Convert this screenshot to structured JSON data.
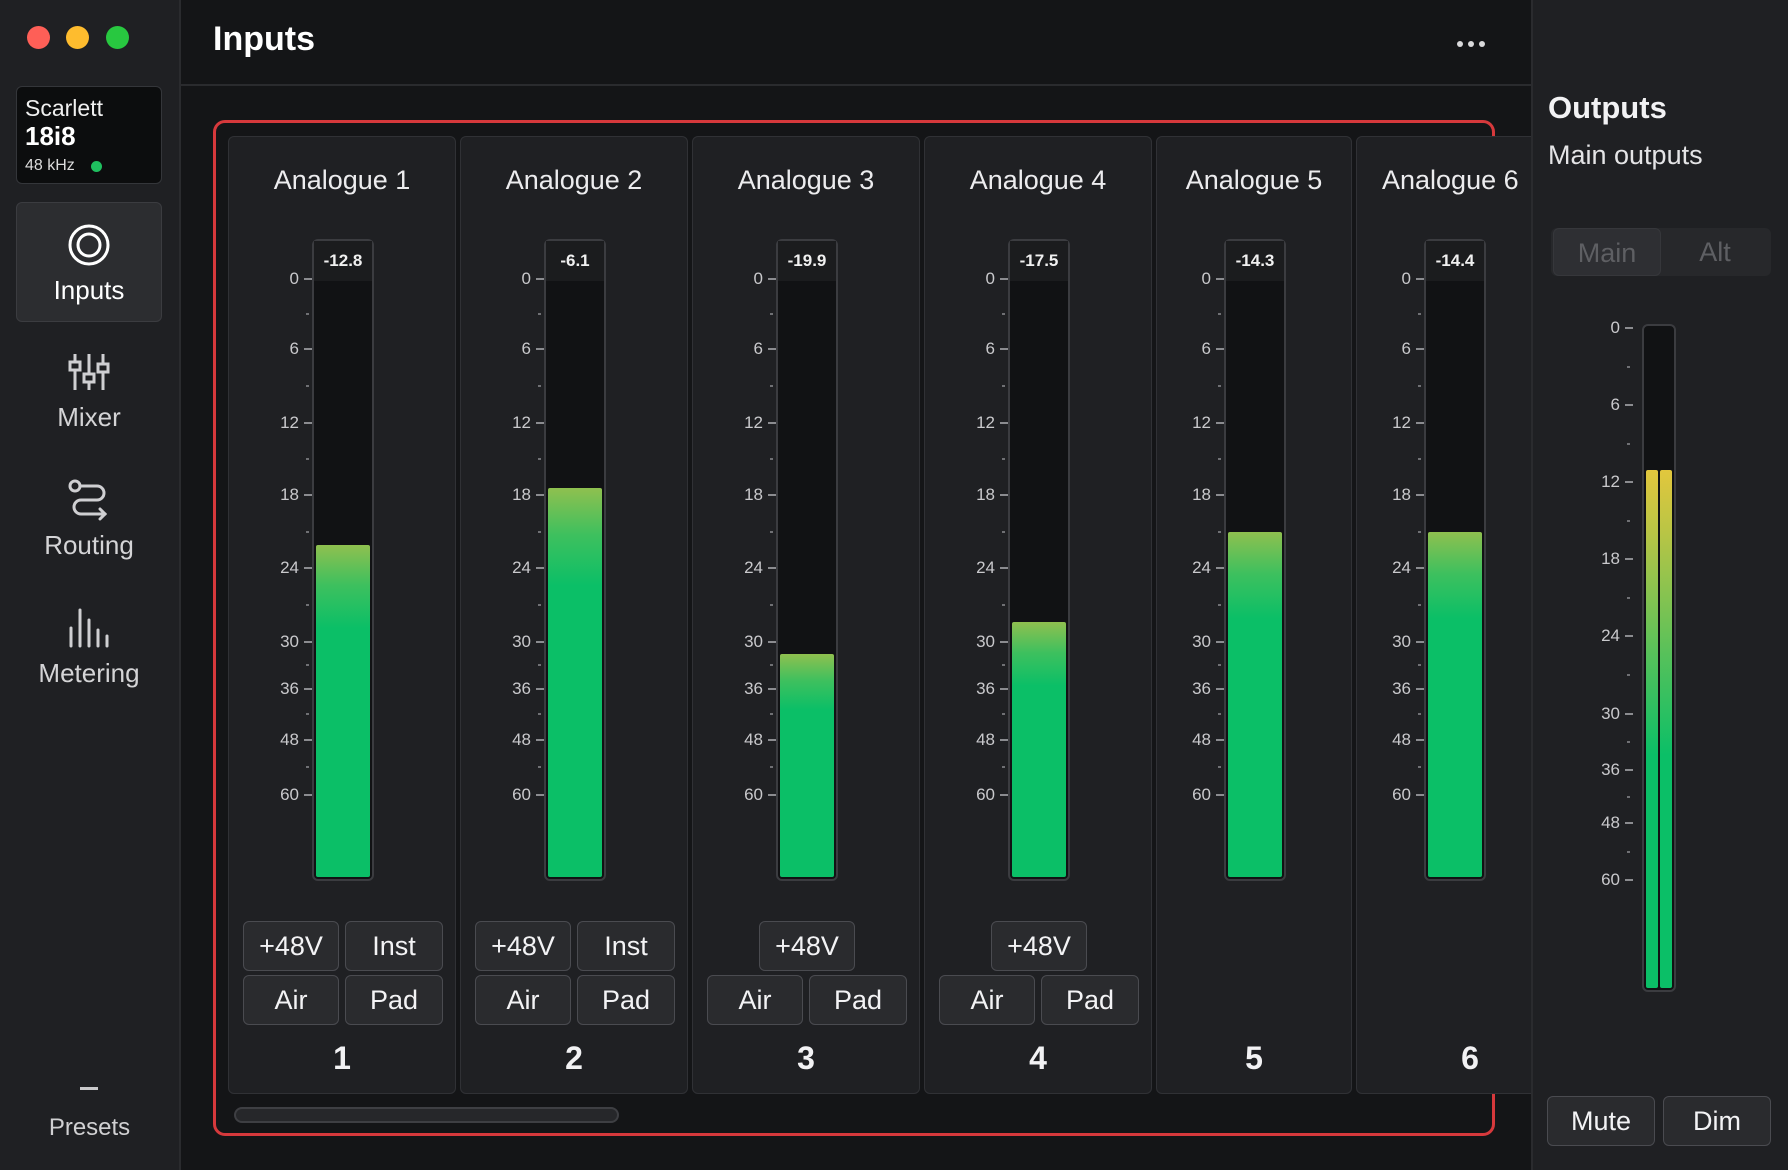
{
  "window": {
    "traffic_lights": {
      "close": "#fe5f57",
      "minimize": "#febc2e",
      "zoom": "#28c840"
    }
  },
  "device": {
    "name": "Scarlett",
    "model": "18i8",
    "sample_rate": "48 kHz",
    "status_color": "#1fbf5f"
  },
  "sidebar": {
    "items": [
      {
        "label": "Inputs",
        "icon": "inputs-icon",
        "active": true
      },
      {
        "label": "Mixer",
        "icon": "mixer-icon",
        "active": false
      },
      {
        "label": "Routing",
        "icon": "routing-icon",
        "active": false
      },
      {
        "label": "Metering",
        "icon": "metering-icon",
        "active": false
      }
    ],
    "presets_label": "Presets"
  },
  "header": {
    "title": "Inputs",
    "more_icon": "more-horizontal-icon"
  },
  "meter_scale": [
    "0",
    "6",
    "12",
    "18",
    "24",
    "30",
    "36",
    "48",
    "60"
  ],
  "inputs": [
    {
      "title": "Analogue 1",
      "peak": "-12.8",
      "level": 0.52,
      "buttons": [
        "+48V",
        "Inst",
        "Air",
        "Pad"
      ],
      "number": "1"
    },
    {
      "title": "Analogue 2",
      "peak": "-6.1",
      "level": 0.61,
      "buttons": [
        "+48V",
        "Inst",
        "Air",
        "Pad"
      ],
      "number": "2"
    },
    {
      "title": "Analogue 3",
      "peak": "-19.9",
      "level": 0.35,
      "buttons": [
        "+48V",
        "Air",
        "Pad"
      ],
      "number": "3"
    },
    {
      "title": "Analogue 4",
      "peak": "-17.5",
      "level": 0.4,
      "buttons": [
        "+48V",
        "Air",
        "Pad"
      ],
      "number": "4"
    },
    {
      "title": "Analogue 5",
      "peak": "-14.3",
      "level": 0.54,
      "buttons": [],
      "number": "5"
    },
    {
      "title": "Analogue 6",
      "peak": "-14.4",
      "level": 0.54,
      "buttons": [],
      "number": "6"
    }
  ],
  "outputs": {
    "title": "Outputs",
    "subtitle": "Main outputs",
    "segment": [
      "Main",
      "Alt"
    ],
    "meter_scale": [
      "0",
      "6",
      "12",
      "18",
      "24",
      "30",
      "36",
      "48",
      "60"
    ],
    "level": 0.78,
    "mute_label": "Mute",
    "dim_label": "Dim"
  },
  "accent_color": "#d6393c",
  "meter_color": "#0bbf67"
}
